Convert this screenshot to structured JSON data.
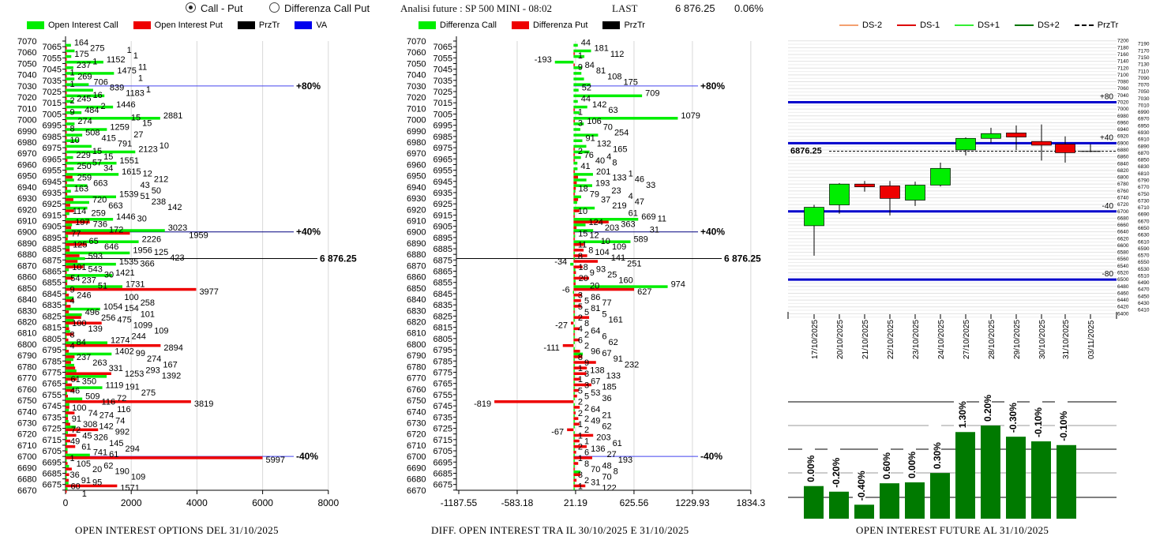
{
  "header": {
    "radio_options": [
      {
        "label": "Call - Put",
        "selected": true
      },
      {
        "label": "Differenza Call Put",
        "selected": false
      }
    ],
    "analysis": "Analisi future : SP 500 MINI - 08:02",
    "last_label": "LAST",
    "last_value": "6 876.25",
    "change": "0.06%"
  },
  "colors": {
    "call": "#00ee00",
    "put": "#ee0000",
    "przTr": "#000000",
    "va": "#0000ff",
    "ds_minus2": "#f4a070",
    "ds_minus1": "#dd0000",
    "ds_plus1": "#33ee33",
    "ds_plus2": "#007700",
    "bar": "#007a00"
  },
  "chart_data": [
    {
      "type": "bar",
      "orientation": "horizontal",
      "title": "OPEN INTEREST OPTIONS DEL 31/10/2025",
      "legend": [
        "Open Interest Call",
        "Open Interest Put",
        "PrzTr",
        "VA"
      ],
      "xlim": [
        0,
        8000
      ],
      "xticks": [
        "0",
        "2000",
        "4000",
        "6000",
        "8000"
      ],
      "strikes": [
        7065,
        7060,
        7055,
        7050,
        7045,
        7040,
        7035,
        7030,
        7025,
        7020,
        7015,
        7010,
        7005,
        7000,
        6995,
        6990,
        6985,
        6980,
        6975,
        6970,
        6965,
        6960,
        6955,
        6950,
        6945,
        6940,
        6935,
        6930,
        6925,
        6920,
        6915,
        6910,
        6905,
        6900,
        6895,
        6890,
        6885,
        6880,
        6875,
        6870,
        6865,
        6860,
        6855,
        6850,
        6845,
        6840,
        6835,
        6830,
        6825,
        6820,
        6815,
        6810,
        6805,
        6800,
        6795,
        6790,
        6785,
        6780,
        6775,
        6770,
        6765,
        6760,
        6755,
        6750,
        6745,
        6740,
        6735,
        6730,
        6725,
        6720,
        6715,
        6710,
        6705,
        6700,
        6695,
        6690,
        6685,
        6680,
        6675,
        6670
      ],
      "series": [
        {
          "name": "Open Interest Call",
          "values": [
            164,
            275,
            175,
            1152,
            237,
            1475,
            269,
            706,
            839,
            1183,
            245,
            1446,
            484,
            2881,
            274,
            1259,
            508,
            415,
            791,
            2123,
            229,
            1551,
            250,
            1615,
            259,
            663,
            163,
            1539,
            720,
            663,
            114,
            1446,
            197,
            3023,
            77,
            2226,
            125,
            1956,
            593,
            1535,
            101,
            1421,
            54,
            1731,
            9,
            246,
            4,
            1054,
            496,
            256,
            100,
            139,
            8,
            1274,
            4,
            1402,
            237,
            263,
            331,
            1253,
            61,
            1119,
            46,
            509,
            116,
            100,
            74,
            91,
            308,
            72,
            45,
            49,
            61,
            741,
            1,
            105,
            20,
            36,
            91,
            60
          ]
        },
        {
          "name": "Open Interest Put",
          "values": [
            1,
            1,
            1,
            11,
            1,
            1,
            1,
            1,
            16,
            2,
            2,
            9,
            15,
            15,
            8,
            27,
            10,
            10,
            15,
            15,
            57,
            34,
            12,
            212,
            43,
            50,
            51,
            238,
            142,
            259,
            30,
            736,
            172,
            1959,
            65,
            646,
            125,
            423,
            366,
            543,
            30,
            237,
            51,
            3977,
            100,
            258,
            154,
            101,
            475,
            1099,
            109,
            244,
            84,
            2894,
            99,
            274,
            167,
            293,
            1392,
            350,
            191,
            275,
            72,
            3819,
            116,
            274,
            74,
            142,
            992,
            326,
            145,
            294,
            61,
            5997,
            62,
            190,
            109,
            95,
            1571,
            1
          ]
        }
      ],
      "levels": [
        {
          "label": "+80%",
          "strike": 7030
        },
        {
          "label": "+40%",
          "strike": 6900
        },
        {
          "label": "6 876.25",
          "strike": 6876.25
        },
        {
          "label": "-40%",
          "strike": 6700
        }
      ]
    },
    {
      "type": "bar",
      "orientation": "horizontal",
      "title": "DIFF. OPEN INTEREST TRA IL 30/10/2025 E 31/10/2025",
      "legend": [
        "Differenza Call",
        "Differenza Put",
        "PrzTr"
      ],
      "xlim": [
        -1187.55,
        1834.3
      ],
      "xticks": [
        "-1187.55",
        "-583.18",
        "21.19",
        "625.56",
        "1229.93",
        "1834.3"
      ],
      "series": [
        {
          "name": "Differenza Call",
          "values": [
            44,
            181,
            112,
            -193,
            84,
            81,
            108,
            175,
            52,
            709,
            44,
            142,
            63,
            1079,
            106,
            70,
            254,
            91,
            132,
            165,
            76,
            40,
            41,
            201,
            133,
            193,
            18,
            79,
            37,
            219,
            10,
            669,
            124,
            203,
            15,
            589,
            11,
            8,
            8,
            -34,
            18,
            9,
            20,
            974,
            -6,
            3,
            5,
            5,
            5,
            2,
            8,
            4,
            2,
            6,
            2,
            96,
            8,
            9,
            1,
            3,
            1,
            3,
            5,
            5,
            2,
            2,
            2,
            2,
            1,
            2,
            1,
            1,
            2,
            6,
            1,
            8,
            70,
            3,
            2,
            1
          ]
        },
        {
          "name": "Differenza Put",
          "values": [
            0,
            1,
            0,
            9,
            0,
            0,
            0,
            0,
            0,
            0,
            0,
            1,
            0,
            3,
            0,
            0,
            0,
            0,
            2,
            4,
            8,
            0,
            1,
            46,
            33,
            23,
            4,
            47,
            0,
            61,
            11,
            363,
            31,
            12,
            10,
            109,
            104,
            141,
            251,
            93,
            25,
            160,
            20,
            627,
            86,
            77,
            81,
            5,
            161,
            -27,
            64,
            6,
            62,
            -111,
            67,
            91,
            232,
            138,
            133,
            67,
            185,
            53,
            36,
            -819,
            64,
            21,
            49,
            62,
            -67,
            203,
            61,
            136,
            27,
            193,
            48,
            8,
            70,
            31,
            122,
            0
          ]
        }
      ],
      "levels": [
        {
          "label": "+80%",
          "strike": 7030
        },
        {
          "label": "+40%",
          "strike": 6900
        },
        {
          "label": "6 876.25",
          "strike": 6876.25
        },
        {
          "label": "-40%",
          "strike": 6700
        }
      ]
    },
    {
      "type": "candlestick",
      "legend": [
        "DS-2",
        "DS-1",
        "DS+1",
        "DS+2",
        "PrzTr"
      ],
      "ylim": [
        6400,
        7200
      ],
      "categories": [
        "17/10/2025",
        "20/10/2025",
        "21/10/2025",
        "22/10/2025",
        "23/10/2025",
        "24/10/2025",
        "27/10/2025",
        "28/10/2025",
        "29/10/2025",
        "30/10/2025",
        "31/10/2025",
        "03/11/2025"
      ],
      "ohlc": [
        [
          6658,
          6719,
          6570,
          6712
        ],
        [
          6719,
          6783,
          6693,
          6780
        ],
        [
          6780,
          6789,
          6758,
          6772
        ],
        [
          6775,
          6789,
          6688,
          6738
        ],
        [
          6733,
          6787,
          6716,
          6777
        ],
        [
          6777,
          6843,
          6773,
          6826
        ],
        [
          6880,
          6917,
          6864,
          6914
        ],
        [
          6914,
          6945,
          6901,
          6928
        ],
        [
          6930,
          6952,
          6880,
          6918
        ],
        [
          6905,
          6955,
          6849,
          6894
        ],
        [
          6897,
          6920,
          6843,
          6872
        ],
        [
          6876,
          6897,
          6874,
          6876
        ]
      ],
      "levels": [
        {
          "label": "+80",
          "value": 7020
        },
        {
          "label": "+40",
          "value": 6900
        },
        {
          "label": "-40",
          "value": 6700
        },
        {
          "label": "-80",
          "value": 6500
        }
      ],
      "przTr": {
        "label": "6876.25",
        "value": 6876.25
      },
      "yticks_inner": [
        7200,
        7180,
        7160,
        7140,
        7120,
        7100,
        7080,
        7060,
        7040,
        7020,
        7000,
        6980,
        6960,
        6940,
        6920,
        6900,
        6880,
        6860,
        6840,
        6820,
        6800,
        6780,
        6760,
        6740,
        6720,
        6700,
        6680,
        6660,
        6640,
        6620,
        6600,
        6580,
        6560,
        6540,
        6520,
        6500,
        6480,
        6460,
        6440,
        6420,
        6400
      ],
      "yticks_outer": [
        7190,
        7170,
        7150,
        7130,
        7110,
        7090,
        7070,
        7050,
        7030,
        7010,
        6990,
        6970,
        6950,
        6930,
        6910,
        6890,
        6870,
        6850,
        6830,
        6810,
        6790,
        6770,
        6750,
        6730,
        6710,
        6690,
        6670,
        6650,
        6630,
        6610,
        6590,
        6570,
        6550,
        6530,
        6510,
        6490,
        6470,
        6450,
        6430,
        6410
      ]
    },
    {
      "type": "bar",
      "title": "OPEN INTEREST FUTURE AL 31/10/2025",
      "relative_height": [
        0.35,
        0.29,
        0.15,
        0.38,
        0.39,
        0.49,
        0.93,
        1.0,
        0.88,
        0.83,
        0.79
      ],
      "labels": [
        "0.00%",
        "-0.20%",
        "-0.40%",
        "0.60%",
        "0.00%",
        "0.30%",
        "1.30%",
        "0.20%",
        "-0.30%",
        "-0.10%",
        "-0.10%"
      ]
    }
  ]
}
